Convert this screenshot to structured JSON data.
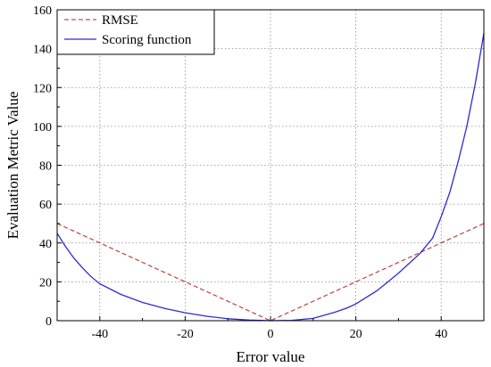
{
  "chart_data": {
    "type": "line",
    "title": "",
    "xlabel": "Error value",
    "ylabel": "Evaluation Metric Value",
    "xlim": [
      -50,
      50
    ],
    "ylim": [
      0,
      160
    ],
    "xticks": [
      -40,
      -20,
      0,
      20,
      40
    ],
    "yticks": [
      0,
      20,
      40,
      60,
      80,
      100,
      120,
      140,
      160
    ],
    "grid": true,
    "legend_position": "top-left",
    "series": [
      {
        "name": "RMSE",
        "color": "#c0504d",
        "style": "dashed",
        "x": [
          -50,
          0,
          50
        ],
        "y": [
          50,
          0,
          50
        ]
      },
      {
        "name": "Scoring function",
        "color": "#2b2bd6",
        "style": "solid",
        "x": [
          -50,
          -48,
          -46,
          -44,
          -42,
          -40,
          -35,
          -30,
          -25,
          -20,
          -15,
          -10,
          -5,
          0,
          5,
          10,
          15,
          18,
          20,
          25,
          30,
          35,
          38,
          40,
          42,
          44,
          46,
          48,
          50
        ],
        "y": [
          45,
          38,
          32,
          27,
          22.6,
          19,
          13.5,
          9.4,
          6.4,
          4.1,
          2.3,
          1.0,
          0.3,
          0,
          0.2,
          1.2,
          4.3,
          6.6,
          8.6,
          15.5,
          24.5,
          34.5,
          42.5,
          53.5,
          66,
          82,
          100,
          122,
          148
        ]
      }
    ]
  }
}
